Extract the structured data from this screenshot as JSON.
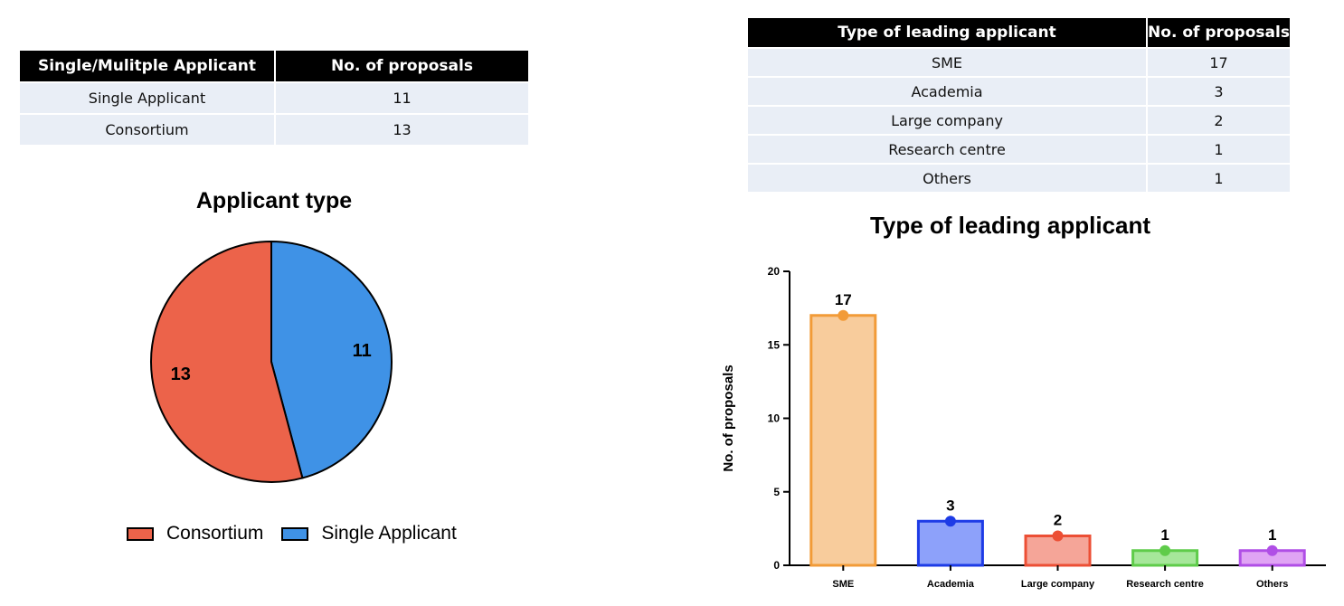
{
  "table_applicants": {
    "headers": [
      "Single/Mulitple Applicant",
      "No. of proposals"
    ],
    "rows": [
      [
        "Single Applicant",
        "11"
      ],
      [
        "Consortium",
        "13"
      ]
    ]
  },
  "table_leading": {
    "headers": [
      "Type of leading applicant",
      "No. of proposals"
    ],
    "rows": [
      [
        "SME",
        "17"
      ],
      [
        "Academia",
        "3"
      ],
      [
        "Large company",
        "2"
      ],
      [
        "Research centre",
        "1"
      ],
      [
        "Others",
        "1"
      ]
    ]
  },
  "chart_data": [
    {
      "type": "pie",
      "title": "Applicant type",
      "slices": [
        {
          "label": "Single Applicant",
          "value": 11,
          "color": "#3f92e6"
        },
        {
          "label": "Consortium",
          "value": 13,
          "color": "#ec634a"
        }
      ],
      "legend": [
        "Consortium",
        "Single Applicant"
      ],
      "legend_position": "bottom"
    },
    {
      "type": "bar",
      "title": "Type of leading applicant",
      "categories": [
        "SME",
        "Academia",
        "Large company",
        "Research centre",
        "Others"
      ],
      "values": [
        17,
        3,
        2,
        1,
        1
      ],
      "fill_colors": [
        "#f8cc9c",
        "#8da1fa",
        "#f5a598",
        "#a6e79a",
        "#e0a4f4"
      ],
      "stroke_colors": [
        "#f29b38",
        "#1d3be6",
        "#ec4f35",
        "#5fcc4a",
        "#b04ee6"
      ],
      "xlabel": "",
      "ylabel": "No. of proposals",
      "ylim": [
        0,
        20
      ],
      "yticks": [
        0,
        5,
        10,
        15,
        20
      ],
      "grid": false
    }
  ]
}
